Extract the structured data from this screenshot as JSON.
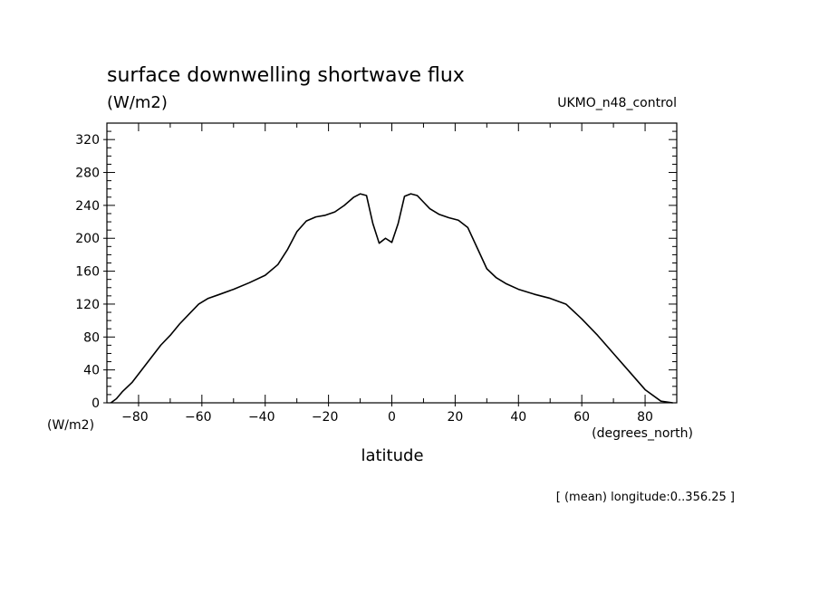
{
  "chart_data": {
    "type": "line",
    "title": "surface downwelling shortwave flux",
    "units": "(W/m2)",
    "dataset": "UKMO_n48_control",
    "xlabel": "latitude",
    "xunits": "(degrees_north)",
    "yunits": "(W/m2)",
    "footer": "[ (mean) longitude:0..356.25 ]",
    "xlim": [
      -90,
      90
    ],
    "ylim": [
      0,
      340
    ],
    "xticks": [
      -80,
      -60,
      -40,
      -20,
      0,
      20,
      40,
      60,
      80
    ],
    "yticks": [
      0,
      40,
      80,
      120,
      160,
      200,
      240,
      280,
      320
    ],
    "x": [
      -88.75,
      -87,
      -85,
      -82,
      -79,
      -76,
      -73,
      -70,
      -67,
      -64,
      -61,
      -58,
      -55,
      -50,
      -45,
      -40,
      -36,
      -33,
      -30,
      -27,
      -24,
      -21,
      -18,
      -15,
      -12,
      -10,
      -8,
      -6,
      -4,
      -2,
      0,
      2,
      4,
      6,
      8,
      10,
      12,
      15,
      18,
      21,
      24,
      27,
      30,
      33,
      36,
      40,
      45,
      50,
      55,
      60,
      65,
      70,
      75,
      80,
      85,
      88.75
    ],
    "y": [
      0,
      5,
      14,
      25,
      40,
      55,
      70,
      82,
      96,
      108,
      120,
      127,
      131,
      138,
      146,
      155,
      168,
      186,
      208,
      221,
      226,
      228,
      232,
      240,
      250,
      254,
      252,
      218,
      194,
      200,
      195,
      218,
      251,
      254,
      252,
      244,
      236,
      229,
      225,
      222,
      213,
      188,
      163,
      152,
      145,
      138,
      132,
      127,
      120,
      102,
      82,
      60,
      38,
      16,
      2,
      0
    ]
  }
}
